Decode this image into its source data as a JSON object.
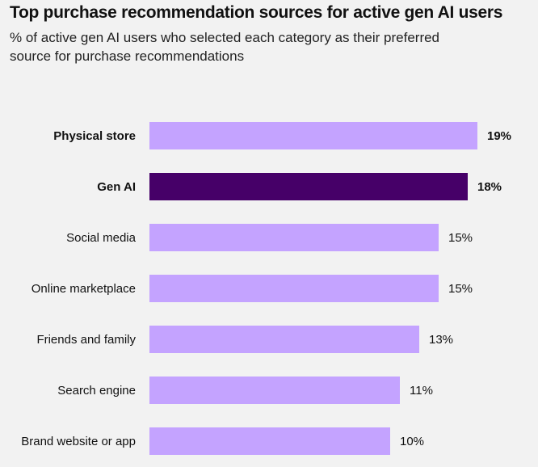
{
  "title": "Top purchase recommendation sources for active gen AI users",
  "subtitle": "% of active gen AI users who selected each category as their preferred source for purchase recommendations",
  "colors": {
    "default": "#c4a3ff",
    "highlight": "#460068",
    "background": "#f2f2f2"
  },
  "chart_data": {
    "type": "bar",
    "orientation": "horizontal",
    "categories": [
      "Physical store",
      "Gen AI",
      "Social media",
      "Online marketplace",
      "Friends and family",
      "Search engine",
      "Brand website or app"
    ],
    "values": [
      19,
      18,
      15,
      15,
      13,
      11,
      10
    ],
    "data_labels": [
      "19%",
      "18%",
      "15%",
      "15%",
      "13%",
      "11%",
      "10%"
    ],
    "bold": [
      true,
      true,
      false,
      false,
      false,
      false,
      false
    ],
    "highlight": [
      false,
      true,
      false,
      false,
      false,
      false,
      false
    ],
    "unit": "%",
    "grid": false,
    "legend": "none"
  }
}
